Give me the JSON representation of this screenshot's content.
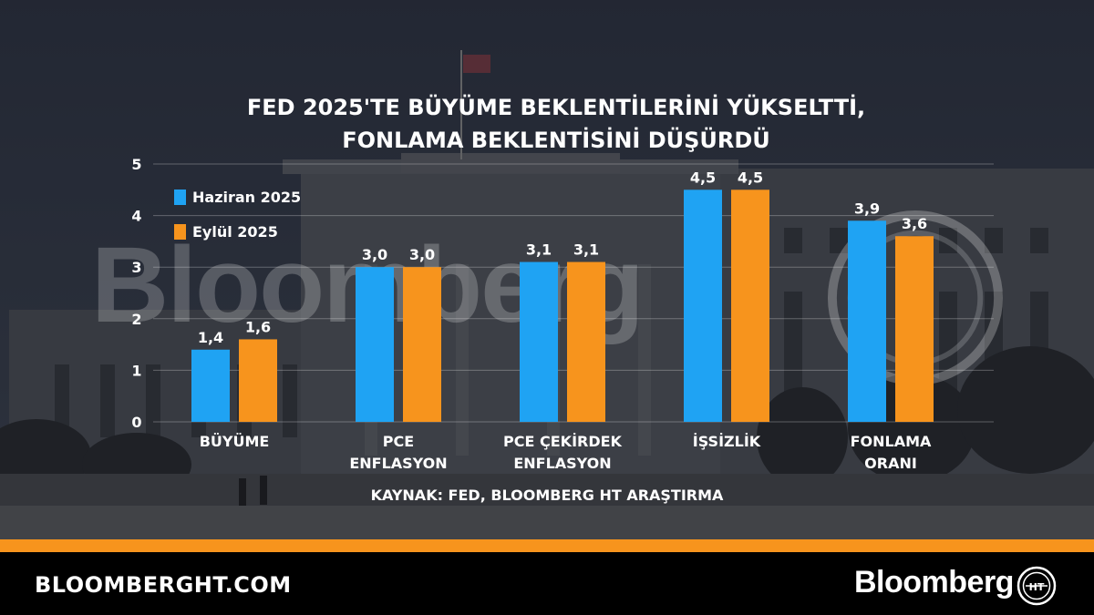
{
  "header": {
    "title_line1": "FED 2025'TE BÜYÜME BEKLENTİLERİNİ YÜKSELTTİ,",
    "title_line2": "FONLAMA BEKLENTİSİNİ DÜŞÜRDÜ"
  },
  "watermark": {
    "text": "Bloomberg",
    "logo_text": "HT"
  },
  "colors": {
    "haziran": "#1fa3f3",
    "eylul": "#f7941d",
    "accent": "#f7941d"
  },
  "chart_data": {
    "type": "bar",
    "categories": [
      "BÜYÜME",
      "PCE ENFLASYON",
      "PCE ÇEKİRDEK ENFLASYON",
      "İŞSİZLİK",
      "FONLAMA ORANI"
    ],
    "category_lines": [
      [
        "BÜYÜME"
      ],
      [
        "PCE",
        "ENFLASYON"
      ],
      [
        "PCE ÇEKİRDEK",
        "ENFLASYON"
      ],
      [
        "İŞSİZLİK"
      ],
      [
        "FONLAMA",
        "ORANI"
      ]
    ],
    "series": [
      {
        "name": "Haziran 2025",
        "values": [
          1.4,
          3.0,
          3.1,
          4.5,
          3.9
        ],
        "labels": [
          "1,4",
          "3,0",
          "3,1",
          "4,5",
          "3,9"
        ],
        "color": "#1fa3f3"
      },
      {
        "name": "Eylül 2025",
        "values": [
          1.6,
          3.0,
          3.1,
          4.5,
          3.6
        ],
        "labels": [
          "1,6",
          "3,0",
          "3,1",
          "4,5",
          "3,6"
        ],
        "color": "#f7941d"
      }
    ],
    "yticks": [
      "0",
      "1",
      "2",
      "3",
      "4",
      "5"
    ],
    "ylim": [
      0,
      5
    ],
    "grid": true,
    "legend": "top-left",
    "source": "KAYNAK: FED, BLOOMBERG HT ARAŞTIRMA"
  },
  "footer": {
    "site": "BLOOMBERGHT.COM",
    "brand": "Bloomberg",
    "logo_text": "HT"
  }
}
